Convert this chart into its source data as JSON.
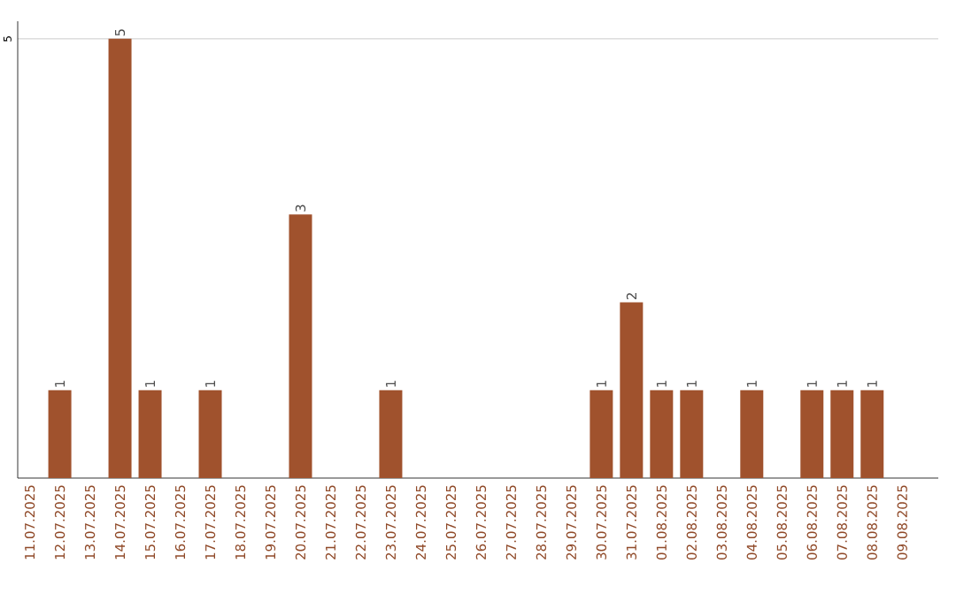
{
  "chart_data": {
    "type": "bar",
    "categories": [
      "11.07.2025",
      "12.07.2025",
      "13.07.2025",
      "14.07.2025",
      "15.07.2025",
      "16.07.2025",
      "17.07.2025",
      "18.07.2025",
      "19.07.2025",
      "20.07.2025",
      "21.07.2025",
      "22.07.2025",
      "23.07.2025",
      "24.07.2025",
      "25.07.2025",
      "26.07.2025",
      "27.07.2025",
      "28.07.2025",
      "29.07.2025",
      "30.07.2025",
      "31.07.2025",
      "01.08.2025",
      "02.08.2025",
      "03.08.2025",
      "04.08.2025",
      "05.08.2025",
      "06.08.2025",
      "07.08.2025",
      "08.08.2025",
      "09.08.2025"
    ],
    "values": [
      0,
      1,
      0,
      5,
      1,
      0,
      1,
      0,
      0,
      3,
      0,
      0,
      1,
      0,
      0,
      0,
      0,
      0,
      0,
      1,
      2,
      1,
      1,
      0,
      1,
      0,
      1,
      1,
      1,
      0
    ],
    "value_labels": [
      null,
      "1",
      null,
      "5",
      "1",
      null,
      "1",
      null,
      null,
      "3",
      null,
      null,
      "1",
      null,
      null,
      null,
      null,
      null,
      null,
      "1",
      "2",
      "1",
      "1",
      null,
      "1",
      null,
      "1",
      "1",
      "1",
      null
    ],
    "color": "#a0522d",
    "ylim": [
      0,
      5.2
    ],
    "yticks": [
      5
    ],
    "grid": "y"
  }
}
